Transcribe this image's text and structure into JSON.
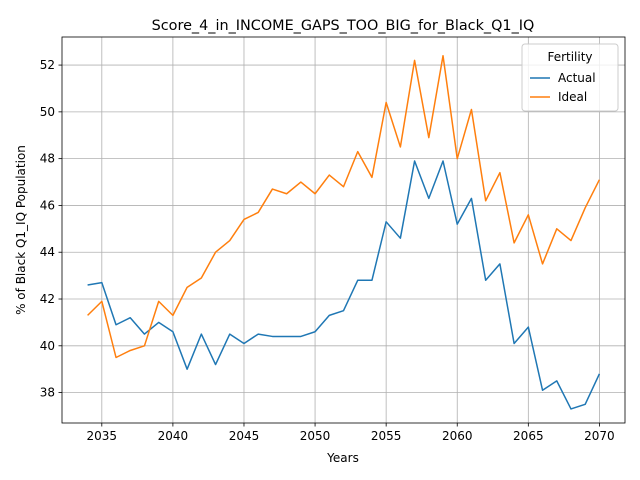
{
  "chart_data": {
    "type": "line",
    "title": "Score_4_in_INCOME_GAPS_TOO_BIG_for_Black_Q1_IQ",
    "xlabel": "Years",
    "ylabel": "% of Black Q1_IQ Population",
    "xlim": [
      2032.2,
      2071.8
    ],
    "ylim": [
      36.7,
      53.2
    ],
    "xticks": [
      2035,
      2040,
      2045,
      2050,
      2055,
      2060,
      2065,
      2070
    ],
    "yticks": [
      38,
      40,
      42,
      44,
      46,
      48,
      50,
      52
    ],
    "grid": true,
    "legend": {
      "title": "Fertility",
      "placement": "top-right"
    },
    "x": [
      2034,
      2035,
      2036,
      2037,
      2038,
      2039,
      2040,
      2041,
      2042,
      2043,
      2044,
      2045,
      2046,
      2047,
      2048,
      2049,
      2050,
      2051,
      2052,
      2053,
      2054,
      2055,
      2056,
      2057,
      2058,
      2059,
      2060,
      2061,
      2062,
      2063,
      2064,
      2065,
      2066,
      2067,
      2068,
      2069,
      2070
    ],
    "series": [
      {
        "name": "Actual",
        "color": "#1f77b4",
        "values": [
          42.6,
          42.7,
          40.9,
          41.2,
          40.5,
          41.0,
          40.6,
          39.0,
          40.5,
          39.2,
          40.5,
          40.1,
          40.5,
          40.4,
          40.4,
          40.4,
          40.6,
          41.3,
          41.5,
          42.8,
          42.8,
          45.3,
          44.6,
          47.9,
          46.3,
          47.9,
          45.2,
          46.3,
          42.8,
          43.5,
          40.1,
          40.8,
          38.1,
          38.5,
          37.3,
          37.5,
          38.8
        ]
      },
      {
        "name": "Ideal",
        "color": "#ff7f0e",
        "values": [
          41.3,
          41.9,
          39.5,
          39.8,
          40.0,
          41.9,
          41.3,
          42.5,
          42.9,
          44.0,
          44.5,
          45.4,
          45.7,
          46.7,
          46.5,
          47.0,
          46.5,
          47.3,
          46.8,
          48.3,
          47.2,
          50.4,
          48.5,
          52.2,
          48.9,
          52.4,
          48.0,
          50.1,
          46.2,
          47.4,
          44.4,
          45.6,
          43.5,
          45.0,
          44.5,
          45.9,
          47.1
        ]
      }
    ]
  }
}
